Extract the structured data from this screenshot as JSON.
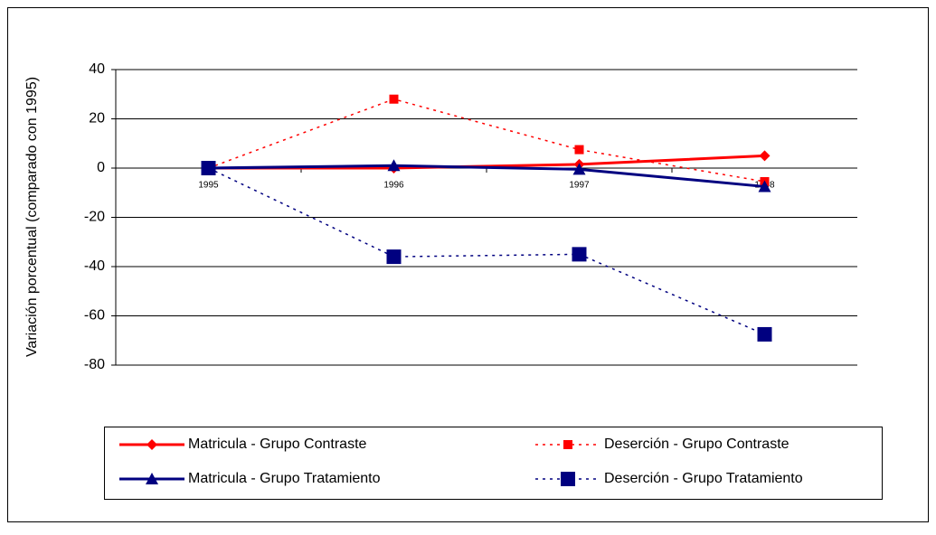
{
  "chart_data": {
    "type": "line",
    "y_label": "Variación porcentual (comparado con 1995)",
    "categories": [
      "1995",
      "1996",
      "1997",
      "1998"
    ],
    "series": [
      {
        "name": "Matricula - Grupo Contraste",
        "color": "#ff0000",
        "marker": "diamond",
        "dashed": false,
        "values": [
          0,
          0,
          1.5,
          5
        ]
      },
      {
        "name": "Deserción - Grupo Contraste",
        "color": "#ff0000",
        "marker": "square-small",
        "dashed": true,
        "values": [
          0,
          28,
          7.5,
          -5.5
        ]
      },
      {
        "name": "Matricula - Grupo Tratamiento",
        "color": "#000080",
        "marker": "triangle",
        "dashed": false,
        "values": [
          0,
          1,
          -0.5,
          -7.5
        ]
      },
      {
        "name": "Deserción - Grupo Tratamiento",
        "color": "#000080",
        "marker": "square-large",
        "dashed": true,
        "values": [
          0,
          -36,
          -35,
          -67.5
        ]
      }
    ],
    "ylim": [
      -80,
      40
    ],
    "yticks": [
      -80,
      -60,
      -40,
      -20,
      0,
      20,
      40
    ],
    "grid": true
  }
}
